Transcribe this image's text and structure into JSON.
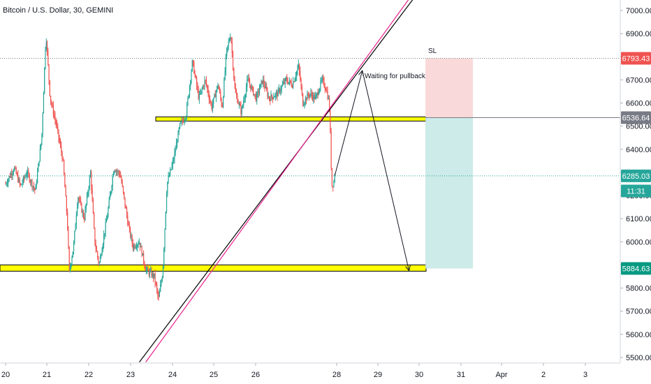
{
  "chart_data": {
    "type": "candlestick",
    "title": "Bitcoin / U.S. Dollar, 30, GEMINI",
    "ylim": [
      5480,
      7050
    ],
    "y_ticks": [
      "5500.00",
      "5600.00",
      "5700.00",
      "5800.00",
      "5900.00",
      "6000.00",
      "6100.00",
      "6200.00",
      "6300.00",
      "6400.00",
      "6500.00",
      "6600.00",
      "6700.00",
      "6800.00",
      "6900.00",
      "7000.00"
    ],
    "x_ticks": [
      "20",
      "21",
      "22",
      "23",
      "24",
      "25",
      "26",
      "28",
      "29",
      "30",
      "31",
      "Apr",
      "2",
      "3"
    ],
    "price_labels": [
      {
        "name": "sl-level",
        "text": "6793.43",
        "value": 6793.43,
        "color": "#ef5350"
      },
      {
        "name": "entry-level",
        "text": "6536.64",
        "value": 6536.64,
        "color": "#787b86"
      },
      {
        "name": "current-price",
        "text": "6285.03",
        "value": 6285.03,
        "color": "#26a69a"
      },
      {
        "name": "candle-countdown",
        "text": "11:31",
        "value": 6220,
        "color": "#26a69a"
      },
      {
        "name": "tp-level",
        "text": "5884.63",
        "value": 5884.63,
        "color": "#089981"
      }
    ],
    "annotations": {
      "sl_label": "SL",
      "pullback_label": "Waiting for pullback"
    },
    "horizontal_lines": [
      {
        "name": "resistance-dotted-line",
        "value": 6793.43,
        "color": "#787b86"
      },
      {
        "name": "price-dotted-line",
        "value": 6285.03,
        "color": "#26a69a"
      }
    ],
    "zones": [
      {
        "name": "upper-support-zone",
        "x0": "24",
        "x1": "30",
        "y0": 6522,
        "y1": 6540,
        "color": "#ffff00"
      },
      {
        "name": "lower-support-zone",
        "x0": "20",
        "x1": "30",
        "y0": 5873,
        "y1": 5900,
        "color": "#ffff00"
      }
    ],
    "position": {
      "entry": 6536.64,
      "stop": 6793.43,
      "target": 5884.63
    },
    "price_path": [
      [
        0,
        6250
      ],
      [
        0.2,
        6320
      ],
      [
        0.35,
        6240
      ],
      [
        0.5,
        6300
      ],
      [
        0.7,
        6220
      ],
      [
        0.85,
        6450
      ],
      [
        0.95,
        6900
      ],
      [
        1.05,
        6620
      ],
      [
        1.2,
        6500
      ],
      [
        1.35,
        6350
      ],
      [
        1.45,
        6100
      ],
      [
        1.5,
        5870
      ],
      [
        1.6,
        5980
      ],
      [
        1.7,
        6200
      ],
      [
        1.85,
        6100
      ],
      [
        2.0,
        6300
      ],
      [
        2.1,
        6000
      ],
      [
        2.2,
        5900
      ],
      [
        2.4,
        6120
      ],
      [
        2.55,
        6320
      ],
      [
        2.7,
        6290
      ],
      [
        2.9,
        6060
      ],
      [
        3.0,
        5980
      ],
      [
        3.15,
        6000
      ],
      [
        3.3,
        5880
      ],
      [
        3.5,
        5850
      ],
      [
        3.6,
        5750
      ],
      [
        3.7,
        5870
      ],
      [
        3.8,
        6250
      ],
      [
        3.95,
        6350
      ],
      [
        4.1,
        6500
      ],
      [
        4.25,
        6550
      ],
      [
        4.4,
        6780
      ],
      [
        4.55,
        6620
      ],
      [
        4.7,
        6700
      ],
      [
        4.85,
        6580
      ],
      [
        5.0,
        6680
      ],
      [
        5.1,
        6580
      ],
      [
        5.2,
        6820
      ],
      [
        5.3,
        6900
      ],
      [
        5.4,
        6650
      ],
      [
        5.55,
        6560
      ],
      [
        5.7,
        6700
      ],
      [
        5.9,
        6620
      ],
      [
        6.05,
        6700
      ],
      [
        6.2,
        6620
      ],
      [
        6.4,
        6640
      ],
      [
        6.6,
        6700
      ],
      [
        6.75,
        6680
      ],
      [
        6.9,
        6760
      ],
      [
        7.0,
        6600
      ],
      [
        7.15,
        6640
      ],
      [
        7.3,
        6620
      ],
      [
        7.45,
        6700
      ],
      [
        7.55,
        6660
      ],
      [
        7.62,
        6600
      ],
      [
        7.65,
        6440
      ],
      [
        7.68,
        6240
      ],
      [
        7.73,
        6260
      ],
      [
        7.76,
        6310
      ]
    ],
    "trendlines": [
      {
        "name": "black-trendline",
        "x0": 3.15,
        "y0": 5480,
        "x1": 9.6,
        "y1": 7050,
        "color": "#000000"
      },
      {
        "name": "magenta-trendline",
        "x0": 3.3,
        "y0": 5480,
        "x1": 9.5,
        "y1": 7050,
        "color": "#e91e8c"
      }
    ],
    "projection_path": [
      {
        "x": 7.75,
        "y": 6285
      },
      {
        "x": 8.4,
        "y": 6740
      },
      {
        "x": 9.5,
        "y": 5875
      }
    ]
  }
}
